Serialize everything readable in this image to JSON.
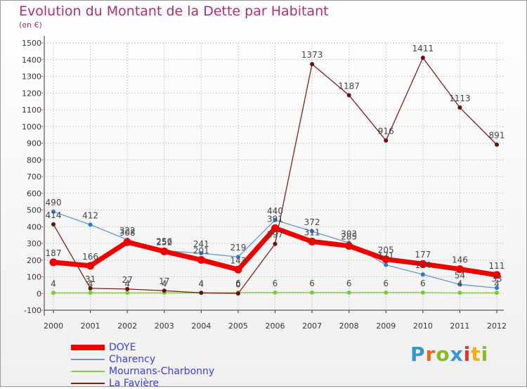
{
  "chart_data": {
    "type": "line",
    "title": "Evolution du Montant de la Dette par Habitant",
    "subtitle": "(en €)",
    "x": [
      "2000",
      "2001",
      "2002",
      "2003",
      "2004",
      "2005",
      "2006",
      "2007",
      "2008",
      "2009",
      "2010",
      "2011",
      "2012"
    ],
    "ylim": [
      -100,
      1500
    ],
    "yticks": [
      -100,
      0,
      100,
      200,
      300,
      400,
      500,
      600,
      700,
      800,
      900,
      1000,
      1100,
      1200,
      1300,
      1400,
      1500
    ],
    "grid": true,
    "legend_position": "bottom-left",
    "series": [
      {
        "name": "DOYE",
        "color": "#ee0000",
        "values": [
          187,
          166,
          308,
          252,
          201,
          143,
          391,
          311,
          285,
          205,
          177,
          146,
          111
        ]
      },
      {
        "name": "Charency",
        "color": "#6699cc",
        "values": [
          490,
          412,
          322,
          256,
          241,
          219,
          440,
          372,
          303,
          171,
          114,
          54,
          33
        ]
      },
      {
        "name": "Mournans-Charbonny",
        "color": "#88cc44",
        "values": [
          4,
          4,
          4,
          4,
          4,
          6,
          6,
          6,
          6,
          6,
          6,
          4,
          4
        ]
      },
      {
        "name": "La Favière",
        "color": "#772222",
        "values": [
          414,
          31,
          27,
          17,
          4,
          0,
          297,
          1373,
          1187,
          916,
          1411,
          1113,
          891
        ]
      }
    ]
  },
  "logo": {
    "letters": [
      "P",
      "r",
      "o",
      "x",
      "i",
      "t",
      "i"
    ],
    "colors": [
      "#3399cc",
      "#ee6622",
      "#88bb22",
      "#3399cc",
      "#dd3333",
      "#ffaa00",
      "#88bb22"
    ]
  }
}
